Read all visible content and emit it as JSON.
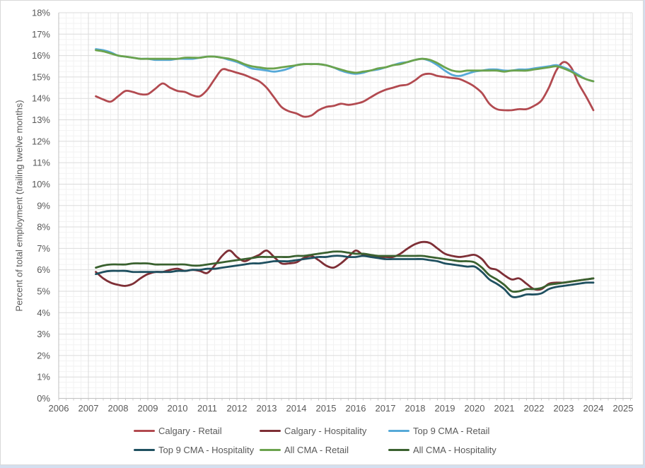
{
  "chart_data": {
    "type": "line",
    "title": "",
    "xlabel": "",
    "ylabel": "Percent of total employment (trailing twelve months)",
    "ylim": [
      0,
      18
    ],
    "xlim": [
      2006,
      2025.3
    ],
    "y_tick_step": 1,
    "y_tick_suffix": "%",
    "x_ticks": [
      2006,
      2007,
      2008,
      2009,
      2010,
      2011,
      2012,
      2013,
      2014,
      2015,
      2016,
      2017,
      2018,
      2019,
      2020,
      2021,
      2022,
      2023,
      2024,
      2025
    ],
    "grid": {
      "major": true,
      "minor": true,
      "minor_x_step": 0.25,
      "minor_y_step": 0.25
    },
    "legend_position": "bottom",
    "x": [
      2007.25,
      2007.5,
      2007.75,
      2008,
      2008.25,
      2008.5,
      2008.75,
      2009,
      2009.25,
      2009.5,
      2009.75,
      2010,
      2010.25,
      2010.5,
      2010.75,
      2011,
      2011.25,
      2011.5,
      2011.75,
      2012,
      2012.25,
      2012.5,
      2012.75,
      2013,
      2013.25,
      2013.5,
      2013.75,
      2014,
      2014.25,
      2014.5,
      2014.75,
      2015,
      2015.25,
      2015.5,
      2015.75,
      2016,
      2016.25,
      2016.5,
      2016.75,
      2017,
      2017.25,
      2017.5,
      2017.75,
      2018,
      2018.25,
      2018.5,
      2018.75,
      2019,
      2019.25,
      2019.5,
      2019.75,
      2020,
      2020.25,
      2020.5,
      2020.75,
      2021,
      2021.25,
      2021.5,
      2021.75,
      2022,
      2022.25,
      2022.5,
      2022.75,
      2023,
      2023.25,
      2023.5,
      2023.75,
      2024
    ],
    "series": [
      {
        "name": "Calgary - Retail",
        "color": "#b24a50",
        "values": [
          14.1,
          13.95,
          13.85,
          14.1,
          14.35,
          14.3,
          14.2,
          14.2,
          14.45,
          14.7,
          14.5,
          14.35,
          14.3,
          14.15,
          14.1,
          14.4,
          14.9,
          15.35,
          15.3,
          15.2,
          15.1,
          14.95,
          14.8,
          14.5,
          14.05,
          13.6,
          13.4,
          13.3,
          13.15,
          13.2,
          13.45,
          13.6,
          13.65,
          13.75,
          13.7,
          13.75,
          13.85,
          14.05,
          14.25,
          14.4,
          14.5,
          14.6,
          14.65,
          14.85,
          15.1,
          15.15,
          15.05,
          15.0,
          14.95,
          14.9,
          14.75,
          14.55,
          14.25,
          13.75,
          13.5,
          13.45,
          13.45,
          13.5,
          13.5,
          13.65,
          13.9,
          14.5,
          15.3,
          15.7,
          15.45,
          14.7,
          14.1,
          13.45
        ]
      },
      {
        "name": "Calgary - Hospitality",
        "color": "#7e2f36",
        "values": [
          5.9,
          5.6,
          5.4,
          5.3,
          5.25,
          5.35,
          5.6,
          5.8,
          5.9,
          5.9,
          6.0,
          6.05,
          5.95,
          6.0,
          5.95,
          5.85,
          6.2,
          6.65,
          6.9,
          6.6,
          6.4,
          6.55,
          6.7,
          6.9,
          6.6,
          6.3,
          6.3,
          6.35,
          6.55,
          6.65,
          6.45,
          6.2,
          6.1,
          6.3,
          6.6,
          6.9,
          6.7,
          6.65,
          6.6,
          6.6,
          6.6,
          6.75,
          7.0,
          7.2,
          7.3,
          7.25,
          7.0,
          6.75,
          6.65,
          6.6,
          6.65,
          6.7,
          6.5,
          6.1,
          6.0,
          5.75,
          5.55,
          5.6,
          5.35,
          5.1,
          5.1,
          5.35,
          5.4,
          5.4,
          5.45,
          5.5,
          5.55,
          5.6
        ]
      },
      {
        "name": "Top 9 CMA - Retail",
        "color": "#56a9d8",
        "values": [
          16.3,
          16.25,
          16.15,
          16.0,
          15.95,
          15.9,
          15.85,
          15.85,
          15.8,
          15.8,
          15.8,
          15.85,
          15.85,
          15.85,
          15.9,
          15.95,
          15.95,
          15.9,
          15.8,
          15.7,
          15.55,
          15.4,
          15.35,
          15.3,
          15.25,
          15.3,
          15.4,
          15.55,
          15.6,
          15.6,
          15.6,
          15.55,
          15.45,
          15.3,
          15.2,
          15.15,
          15.2,
          15.3,
          15.35,
          15.45,
          15.55,
          15.65,
          15.7,
          15.8,
          15.85,
          15.75,
          15.55,
          15.3,
          15.1,
          15.05,
          15.15,
          15.25,
          15.3,
          15.35,
          15.35,
          15.3,
          15.3,
          15.35,
          15.35,
          15.4,
          15.45,
          15.5,
          15.55,
          15.45,
          15.3,
          15.1,
          14.9,
          14.8
        ]
      },
      {
        "name": "Top 9 CMA - Hospitality",
        "color": "#1f5060",
        "values": [
          5.8,
          5.9,
          5.95,
          5.95,
          5.95,
          5.9,
          5.9,
          5.9,
          5.9,
          5.9,
          5.9,
          5.95,
          5.95,
          6.0,
          6.0,
          6.05,
          6.05,
          6.1,
          6.15,
          6.2,
          6.25,
          6.3,
          6.3,
          6.35,
          6.4,
          6.4,
          6.4,
          6.45,
          6.5,
          6.55,
          6.6,
          6.6,
          6.65,
          6.65,
          6.6,
          6.6,
          6.65,
          6.6,
          6.55,
          6.5,
          6.5,
          6.5,
          6.5,
          6.5,
          6.5,
          6.45,
          6.4,
          6.3,
          6.25,
          6.2,
          6.15,
          6.15,
          5.9,
          5.55,
          5.35,
          5.1,
          4.75,
          4.75,
          4.85,
          4.85,
          4.9,
          5.1,
          5.2,
          5.25,
          5.3,
          5.35,
          5.4,
          5.4
        ]
      },
      {
        "name": "All CMA - Retail",
        "color": "#6ba34d",
        "values": [
          16.25,
          16.2,
          16.1,
          16.0,
          15.95,
          15.9,
          15.85,
          15.85,
          15.85,
          15.85,
          15.85,
          15.85,
          15.9,
          15.9,
          15.9,
          15.95,
          15.95,
          15.9,
          15.85,
          15.75,
          15.6,
          15.5,
          15.45,
          15.4,
          15.4,
          15.45,
          15.5,
          15.55,
          15.6,
          15.6,
          15.6,
          15.55,
          15.45,
          15.35,
          15.25,
          15.2,
          15.25,
          15.3,
          15.4,
          15.45,
          15.55,
          15.6,
          15.7,
          15.8,
          15.85,
          15.8,
          15.65,
          15.45,
          15.3,
          15.25,
          15.3,
          15.3,
          15.3,
          15.3,
          15.3,
          15.25,
          15.3,
          15.3,
          15.3,
          15.35,
          15.4,
          15.45,
          15.5,
          15.4,
          15.25,
          15.05,
          14.9,
          14.8
        ]
      },
      {
        "name": "All CMA - Hospitality",
        "color": "#3a612f",
        "values": [
          6.1,
          6.2,
          6.25,
          6.25,
          6.25,
          6.3,
          6.3,
          6.3,
          6.25,
          6.25,
          6.25,
          6.25,
          6.25,
          6.2,
          6.2,
          6.25,
          6.3,
          6.35,
          6.4,
          6.45,
          6.5,
          6.55,
          6.6,
          6.6,
          6.6,
          6.6,
          6.6,
          6.65,
          6.65,
          6.7,
          6.75,
          6.8,
          6.85,
          6.85,
          6.8,
          6.75,
          6.75,
          6.7,
          6.65,
          6.65,
          6.65,
          6.65,
          6.65,
          6.65,
          6.65,
          6.6,
          6.55,
          6.5,
          6.45,
          6.4,
          6.4,
          6.35,
          6.1,
          5.75,
          5.55,
          5.3,
          5.0,
          5.0,
          5.1,
          5.1,
          5.15,
          5.3,
          5.35,
          5.4,
          5.45,
          5.5,
          5.55,
          5.6
        ]
      }
    ]
  },
  "colors": {
    "tick_label": "#595959",
    "grid_major": "#dbdbdb",
    "grid_minor": "#f2f2f2",
    "axis_line": "#bfbfbf",
    "frame_border": "#d9d9d9",
    "page_edge": "#d3dfef"
  }
}
